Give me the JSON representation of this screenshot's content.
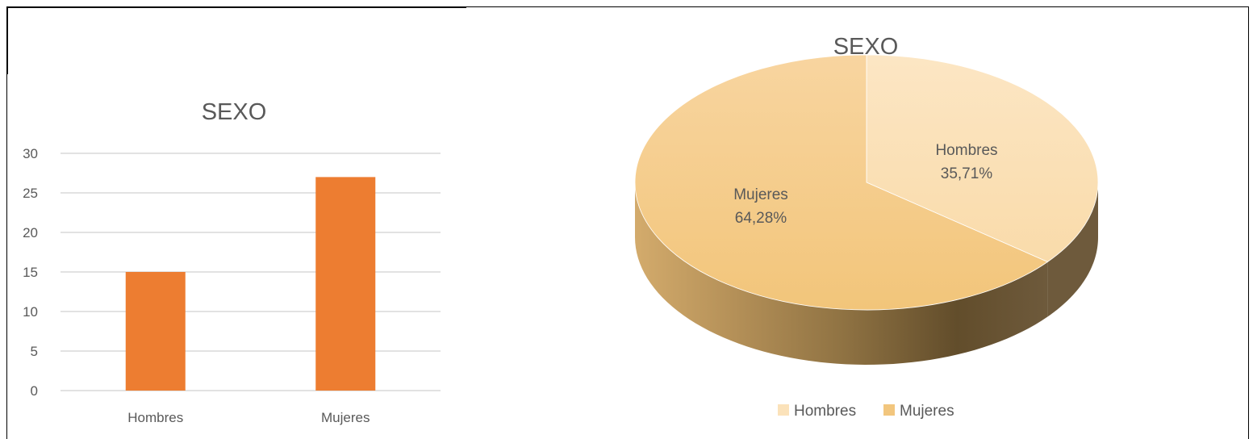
{
  "chart_data": [
    {
      "type": "bar",
      "title": "SEXO",
      "categories": [
        "Hombres",
        "Mujeres"
      ],
      "values": [
        15,
        27
      ],
      "ylim": [
        0,
        30
      ],
      "yticks": [
        "0",
        "5",
        "10",
        "15",
        "20",
        "25",
        "30"
      ],
      "grid": true,
      "colors": {
        "bar": "#ED7D31",
        "grid": "#D9D9D9"
      }
    },
    {
      "type": "pie",
      "title": "SEXO",
      "categories": [
        "Hombres",
        "Mujeres"
      ],
      "values": [
        35.71,
        64.28
      ],
      "data_labels": [
        {
          "name": "Hombres",
          "value": "35,71%"
        },
        {
          "name": "Mujeres",
          "value": "64,28%"
        }
      ],
      "legend": {
        "position": "bottom",
        "entries": [
          "Hombres",
          "Mujeres"
        ]
      },
      "colors": {
        "Hombres": "#FBE2BA",
        "Mujeres": "#F2C67E"
      }
    }
  ]
}
